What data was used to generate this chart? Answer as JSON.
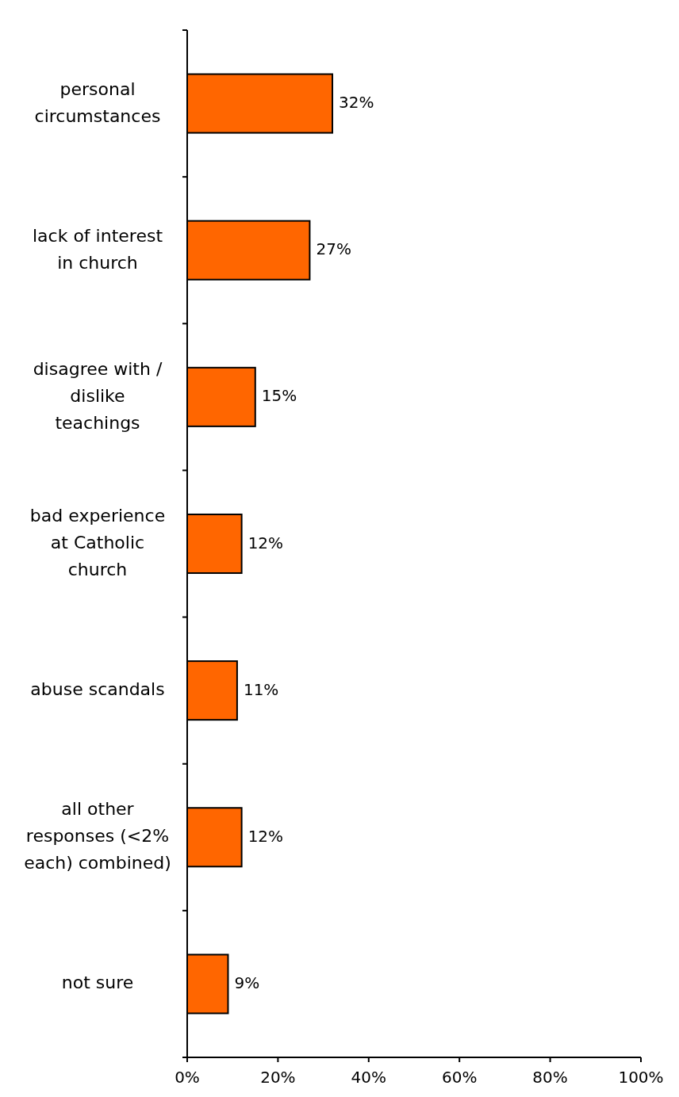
{
  "chart_data": {
    "type": "bar",
    "orientation": "horizontal",
    "categories": [
      "personal circumstances",
      "lack of interest in church",
      "disagree with / dislike teachings",
      "bad experience at Catholic church",
      "abuse scandals",
      "all other responses (<2% each) combined)",
      "not sure"
    ],
    "values": [
      32,
      27,
      15,
      12,
      11,
      12,
      9
    ],
    "value_labels": [
      "32%",
      "27%",
      "15%",
      "12%",
      "11%",
      "12%",
      "9%"
    ],
    "color": "#ff6600",
    "xlim": [
      0,
      100
    ],
    "xticks": [
      {
        "value": 0,
        "label": "0%"
      },
      {
        "value": 20,
        "label": "20%"
      },
      {
        "value": 40,
        "label": "40%"
      },
      {
        "value": 60,
        "label": "60%"
      },
      {
        "value": 80,
        "label": "80%"
      },
      {
        "value": 100,
        "label": "100%"
      }
    ]
  }
}
